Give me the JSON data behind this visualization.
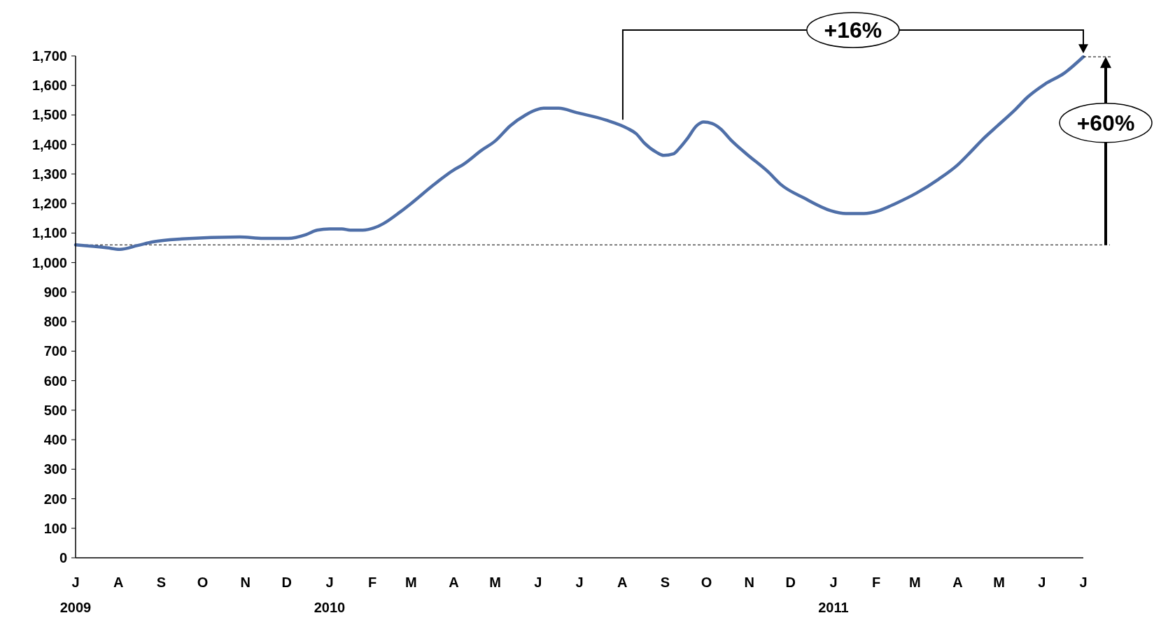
{
  "chart_data": {
    "type": "line",
    "xlim": [
      "2009-07-01",
      "2011-07-01"
    ],
    "xticks": [
      {
        "value": "2009-07-01",
        "label": "J\n2009"
      },
      {
        "value": "2009-08-01",
        "label": "A"
      },
      {
        "value": "2009-09-01",
        "label": "S"
      },
      {
        "value": "2009-10-01",
        "label": "O"
      },
      {
        "value": "2009-11-01",
        "label": "N"
      },
      {
        "value": "2009-12-01",
        "label": "D"
      },
      {
        "value": "2010-01-01",
        "label": "J\n2010"
      },
      {
        "value": "2010-02-01",
        "label": "F"
      },
      {
        "value": "2010-03-01",
        "label": "M"
      },
      {
        "value": "2010-04-01",
        "label": "A"
      },
      {
        "value": "2010-05-01",
        "label": "M"
      },
      {
        "value": "2010-06-01",
        "label": "J"
      },
      {
        "value": "2010-07-01",
        "label": "J"
      },
      {
        "value": "2010-08-01",
        "label": "A"
      },
      {
        "value": "2010-09-01",
        "label": "S"
      },
      {
        "value": "2010-10-01",
        "label": "O"
      },
      {
        "value": "2010-11-01",
        "label": "N"
      },
      {
        "value": "2010-12-01",
        "label": "D"
      },
      {
        "value": "2011-01-01",
        "label": "J\n2011"
      },
      {
        "value": "2011-02-01",
        "label": "F"
      },
      {
        "value": "2011-03-01",
        "label": "M"
      },
      {
        "value": "2011-04-01",
        "label": "A"
      },
      {
        "value": "2011-05-01",
        "label": "M"
      },
      {
        "value": "2011-06-01",
        "label": "J"
      },
      {
        "value": "2011-07-01",
        "label": "J"
      }
    ],
    "ylim": [
      0,
      1700
    ],
    "yticks": [
      {
        "value": 0,
        "label": "0"
      },
      {
        "value": 100,
        "label": "100"
      },
      {
        "value": 200,
        "label": "200"
      },
      {
        "value": 300,
        "label": "300"
      },
      {
        "value": 400,
        "label": "400"
      },
      {
        "value": 500,
        "label": "500"
      },
      {
        "value": 600,
        "label": "600"
      },
      {
        "value": 700,
        "label": "700"
      },
      {
        "value": 800,
        "label": "800"
      },
      {
        "value": 900,
        "label": "900"
      },
      {
        "value": 1000,
        "label": "1,000"
      },
      {
        "value": 1100,
        "label": "1,100"
      },
      {
        "value": 1200,
        "label": "1,200"
      },
      {
        "value": 1300,
        "label": "1,300"
      },
      {
        "value": 1400,
        "label": "1,400"
      },
      {
        "value": 1500,
        "label": "1,500"
      },
      {
        "value": 1600,
        "label": "1,600"
      },
      {
        "value": 1700,
        "label": "1,700"
      }
    ],
    "grid": false,
    "marker": "none",
    "line_style": "solid",
    "ref_lines": [
      {
        "axis": "y",
        "value": 1060,
        "line_style": "dashed",
        "color": "#000000"
      }
    ],
    "annotations": [
      "+16%",
      "+60%"
    ],
    "series": [
      {
        "color": "#4f6fa8",
        "x": [
          "2009-07-01",
          "2009-07-24",
          "2009-08-02",
          "2009-08-15",
          "2009-08-26",
          "2009-09-16",
          "2009-10-28",
          "2009-11-14",
          "2009-12-02",
          "2009-12-15",
          "2009-12-23",
          "2010-01-01",
          "2010-01-10",
          "2010-01-16",
          "2010-01-25",
          "2010-02-02",
          "2010-02-09",
          "2010-02-21",
          "2010-03-01",
          "2010-03-17",
          "2010-03-31",
          "2010-04-08",
          "2010-04-21",
          "2010-05-01",
          "2010-05-12",
          "2010-05-23",
          "2010-05-31",
          "2010-06-05",
          "2010-06-16",
          "2010-06-29",
          "2010-07-20",
          "2010-08-05",
          "2010-08-11",
          "2010-08-17",
          "2010-08-26",
          "2010-08-31",
          "2010-09-07",
          "2010-09-11",
          "2010-09-17",
          "2010-09-24",
          "2010-09-29",
          "2010-10-05",
          "2010-10-11",
          "2010-10-19",
          "2010-10-30",
          "2010-11-15",
          "2010-11-24",
          "2010-12-11",
          "2010-12-30",
          "2011-01-10",
          "2011-01-23",
          "2011-02-03",
          "2011-02-15",
          "2011-03-02",
          "2011-03-18",
          "2011-04-01",
          "2011-04-10",
          "2011-04-19",
          "2011-04-30",
          "2011-05-12",
          "2011-05-22",
          "2011-06-03",
          "2011-06-17",
          "2011-07-01"
        ],
        "values": [
          1060,
          1050,
          1045,
          1058,
          1070,
          1080,
          1087,
          1082,
          1082,
          1095,
          1110,
          1114,
          1114,
          1110,
          1110,
          1117,
          1132,
          1171,
          1200,
          1262,
          1311,
          1333,
          1380,
          1412,
          1464,
          1500,
          1518,
          1523,
          1523,
          1508,
          1483,
          1454,
          1437,
          1405,
          1373,
          1363,
          1368,
          1385,
          1419,
          1464,
          1476,
          1471,
          1454,
          1414,
          1368,
          1306,
          1264,
          1218,
          1176,
          1166,
          1166,
          1176,
          1200,
          1235,
          1282,
          1331,
          1373,
          1417,
          1464,
          1515,
          1562,
          1604,
          1641,
          1697
        ]
      }
    ]
  }
}
